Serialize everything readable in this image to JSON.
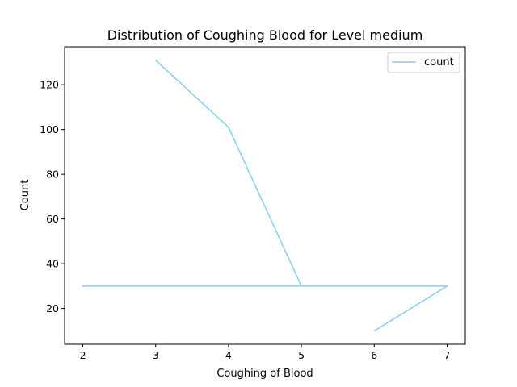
{
  "chart_data": {
    "type": "line",
    "title": "Distribution of Coughing Blood for Level medium",
    "xlabel": "Coughing of Blood",
    "ylabel": "Count",
    "xlim": [
      1.75,
      7.25
    ],
    "ylim": [
      4,
      137
    ],
    "xticks": [
      2,
      3,
      4,
      5,
      6,
      7
    ],
    "yticks": [
      20,
      40,
      60,
      80,
      100,
      120
    ],
    "grid": false,
    "legend_position": "top-right",
    "series": [
      {
        "name": "count",
        "color": "#87ceeb",
        "x": [
          3,
          4,
          5,
          2,
          7,
          6
        ],
        "y": [
          131,
          101,
          30,
          30,
          30,
          10
        ]
      }
    ]
  }
}
